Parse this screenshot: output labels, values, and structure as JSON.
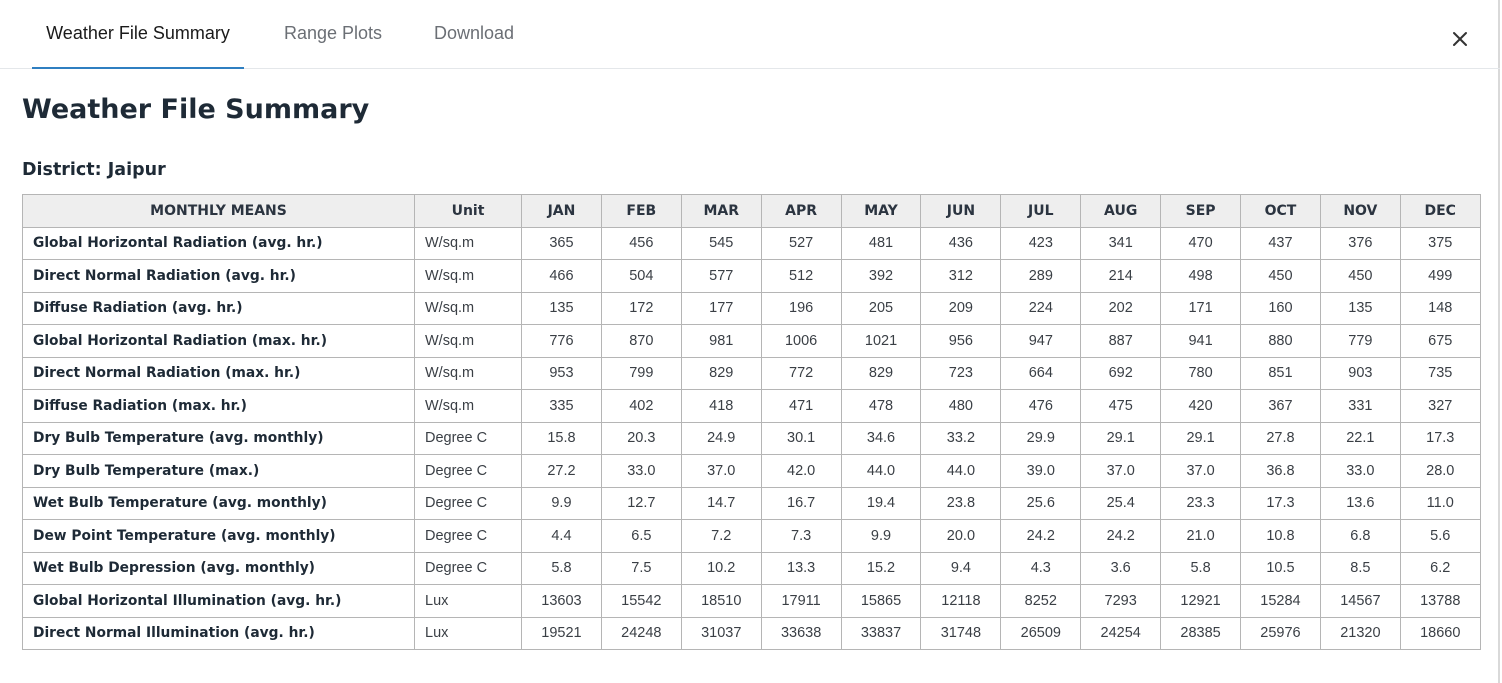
{
  "tabs": [
    {
      "label": "Weather File Summary",
      "active": true
    },
    {
      "label": "Range Plots",
      "active": false
    },
    {
      "label": "Download",
      "active": false
    }
  ],
  "close_icon": "close-icon",
  "title": "Weather File Summary",
  "district": {
    "label": "District:",
    "value": "Jaipur"
  },
  "table": {
    "header": {
      "label": "MONTHLY MEANS",
      "unit": "Unit",
      "months": [
        "JAN",
        "FEB",
        "MAR",
        "APR",
        "MAY",
        "JUN",
        "JUL",
        "AUG",
        "SEP",
        "OCT",
        "NOV",
        "DEC"
      ]
    },
    "rows": [
      {
        "label": "Global Horizontal Radiation (avg. hr.)",
        "unit": "W/sq.m",
        "values": [
          "365",
          "456",
          "545",
          "527",
          "481",
          "436",
          "423",
          "341",
          "470",
          "437",
          "376",
          "375"
        ]
      },
      {
        "label": "Direct Normal Radiation (avg. hr.)",
        "unit": "W/sq.m",
        "values": [
          "466",
          "504",
          "577",
          "512",
          "392",
          "312",
          "289",
          "214",
          "498",
          "450",
          "450",
          "499"
        ]
      },
      {
        "label": "Diffuse Radiation (avg. hr.)",
        "unit": "W/sq.m",
        "values": [
          "135",
          "172",
          "177",
          "196",
          "205",
          "209",
          "224",
          "202",
          "171",
          "160",
          "135",
          "148"
        ]
      },
      {
        "label": "Global Horizontal Radiation (max. hr.)",
        "unit": "W/sq.m",
        "values": [
          "776",
          "870",
          "981",
          "1006",
          "1021",
          "956",
          "947",
          "887",
          "941",
          "880",
          "779",
          "675"
        ]
      },
      {
        "label": "Direct Normal Radiation (max. hr.)",
        "unit": "W/sq.m",
        "values": [
          "953",
          "799",
          "829",
          "772",
          "829",
          "723",
          "664",
          "692",
          "780",
          "851",
          "903",
          "735"
        ]
      },
      {
        "label": "Diffuse Radiation (max. hr.)",
        "unit": "W/sq.m",
        "values": [
          "335",
          "402",
          "418",
          "471",
          "478",
          "480",
          "476",
          "475",
          "420",
          "367",
          "331",
          "327"
        ]
      },
      {
        "label": "Dry Bulb Temperature (avg. monthly)",
        "unit": "Degree C",
        "values": [
          "15.8",
          "20.3",
          "24.9",
          "30.1",
          "34.6",
          "33.2",
          "29.9",
          "29.1",
          "29.1",
          "27.8",
          "22.1",
          "17.3"
        ]
      },
      {
        "label": "Dry Bulb Temperature (max.)",
        "unit": "Degree C",
        "values": [
          "27.2",
          "33.0",
          "37.0",
          "42.0",
          "44.0",
          "44.0",
          "39.0",
          "37.0",
          "37.0",
          "36.8",
          "33.0",
          "28.0"
        ]
      },
      {
        "label": "Wet Bulb Temperature (avg. monthly)",
        "unit": "Degree C",
        "values": [
          "9.9",
          "12.7",
          "14.7",
          "16.7",
          "19.4",
          "23.8",
          "25.6",
          "25.4",
          "23.3",
          "17.3",
          "13.6",
          "11.0"
        ]
      },
      {
        "label": "Dew Point Temperature (avg. monthly)",
        "unit": "Degree C",
        "values": [
          "4.4",
          "6.5",
          "7.2",
          "7.3",
          "9.9",
          "20.0",
          "24.2",
          "24.2",
          "21.0",
          "10.8",
          "6.8",
          "5.6"
        ]
      },
      {
        "label": "Wet Bulb Depression (avg. monthly)",
        "unit": "Degree C",
        "values": [
          "5.8",
          "7.5",
          "10.2",
          "13.3",
          "15.2",
          "9.4",
          "4.3",
          "3.6",
          "5.8",
          "10.5",
          "8.5",
          "6.2"
        ]
      },
      {
        "label": "Global Horizontal Illumination (avg. hr.)",
        "unit": "Lux",
        "values": [
          "13603",
          "15542",
          "18510",
          "17911",
          "15865",
          "12118",
          "8252",
          "7293",
          "12921",
          "15284",
          "14567",
          "13788"
        ]
      },
      {
        "label": "Direct Normal Illumination (avg. hr.)",
        "unit": "Lux",
        "values": [
          "19521",
          "24248",
          "31037",
          "33638",
          "33837",
          "31748",
          "26509",
          "24254",
          "28385",
          "25976",
          "21320",
          "18660"
        ]
      }
    ]
  }
}
